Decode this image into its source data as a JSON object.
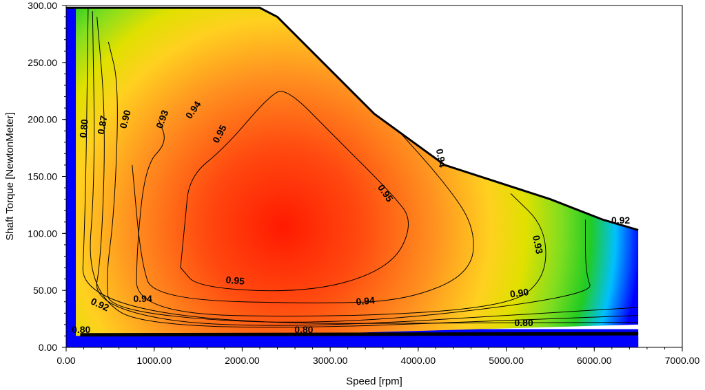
{
  "chart_data": {
    "type": "heatmap",
    "subtype": "efficiency-contour-map",
    "xlabel": "Speed [rpm]",
    "ylabel": "Shaft Torque [NewtonMeter]",
    "xlim": [
      0,
      7000
    ],
    "ylim": [
      0,
      300
    ],
    "x_ticks": [
      "0.00",
      "1000.00",
      "2000.00",
      "3000.00",
      "4000.00",
      "5000.00",
      "6000.00",
      "7000.00"
    ],
    "y_ticks": [
      "0.00",
      "50.00",
      "100.00",
      "150.00",
      "200.00",
      "250.00",
      "300.00"
    ],
    "grid": false,
    "colors": {
      "below_range": "#0000ff",
      "low": "#00c0ff",
      "mid_low": "#22cc22",
      "mid": "#e0e000",
      "mid_high": "#ff9020",
      "high": "#ff1a00"
    },
    "envelope": [
      [
        0,
        298
      ],
      [
        2200,
        298
      ],
      [
        2400,
        290
      ],
      [
        3500,
        205
      ],
      [
        4300,
        160
      ],
      [
        5500,
        130
      ],
      [
        6100,
        112
      ],
      [
        6500,
        103
      ],
      [
        6500,
        20
      ],
      [
        2000,
        10
      ],
      [
        0,
        10
      ]
    ],
    "peak": {
      "speed": 2500,
      "torque": 120,
      "efficiency": 0.96
    },
    "contours": [
      {
        "level": 0.95,
        "points": [
          [
            1300,
            70
          ],
          [
            1500,
            52
          ],
          [
            2800,
            48
          ],
          [
            3700,
            70
          ],
          [
            3950,
            110
          ],
          [
            3700,
            135
          ],
          [
            3050,
            185
          ],
          [
            2500,
            228
          ],
          [
            2300,
            220
          ],
          [
            1800,
            175
          ],
          [
            1400,
            150
          ],
          [
            1350,
            110
          ]
        ]
      },
      {
        "level": 0.94,
        "points": [
          [
            750,
            160
          ],
          [
            850,
            75
          ],
          [
            1000,
            42
          ],
          [
            3000,
            38
          ],
          [
            3900,
            42
          ],
          [
            4600,
            65
          ],
          [
            4650,
            105
          ],
          [
            4300,
            145
          ],
          [
            3600,
            205
          ],
          [
            3400,
            225
          ]
        ]
      },
      {
        "level": 0.93,
        "points": [
          [
            1050,
            200
          ],
          [
            1150,
            180
          ],
          [
            900,
            160
          ],
          [
            800,
            85
          ],
          [
            800,
            30
          ],
          [
            3000,
            26
          ],
          [
            5000,
            35
          ],
          [
            5450,
            60
          ],
          [
            5450,
            105
          ],
          [
            5050,
            135
          ]
        ]
      },
      {
        "level": 0.92,
        "points": [
          [
            480,
            268
          ],
          [
            600,
            230
          ],
          [
            550,
            120
          ],
          [
            450,
            60
          ],
          [
            500,
            30
          ],
          [
            3000,
            18
          ],
          [
            6000,
            45
          ],
          [
            5900,
            65
          ],
          [
            5900,
            112
          ]
        ]
      },
      {
        "level": 0.9,
        "points": [
          [
            350,
            290
          ],
          [
            450,
            200
          ],
          [
            400,
            80
          ],
          [
            300,
            35
          ],
          [
            2000,
            14
          ],
          [
            6500,
            35
          ]
        ]
      },
      {
        "level": 0.87,
        "points": [
          [
            300,
            295
          ],
          [
            330,
            150
          ],
          [
            230,
            50
          ],
          [
            1000,
            12
          ],
          [
            6500,
            28
          ]
        ]
      },
      {
        "level": 0.8,
        "points": [
          [
            250,
            298
          ],
          [
            220,
            120
          ],
          [
            160,
            20
          ],
          [
            6500,
            22
          ]
        ]
      }
    ],
    "contour_labels": [
      {
        "text": "0.95",
        "x": 1750,
        "y": 187,
        "angle": -62
      },
      {
        "text": "0.95",
        "x": 3620,
        "y": 135,
        "angle": 55
      },
      {
        "text": "0.95",
        "x": 1920,
        "y": 58,
        "angle": 5
      },
      {
        "text": "0.94",
        "x": 1450,
        "y": 208,
        "angle": -55
      },
      {
        "text": "0.94",
        "x": 4250,
        "y": 166,
        "angle": 80
      },
      {
        "text": "0.94",
        "x": 870,
        "y": 42,
        "angle": 0
      },
      {
        "text": "0.94",
        "x": 3400,
        "y": 40,
        "angle": -5
      },
      {
        "text": "0.93",
        "x": 1100,
        "y": 200,
        "angle": -70
      },
      {
        "text": "0.93",
        "x": 5350,
        "y": 90,
        "angle": 78
      },
      {
        "text": "0.92",
        "x": 380,
        "y": 37,
        "angle": 25
      },
      {
        "text": "0.92",
        "x": 6300,
        "y": 111,
        "angle": 0
      },
      {
        "text": "0.90",
        "x": 680,
        "y": 200,
        "angle": -75
      },
      {
        "text": "0.90",
        "x": 5150,
        "y": 47,
        "angle": -8
      },
      {
        "text": "0.87",
        "x": 420,
        "y": 195,
        "angle": -80
      },
      {
        "text": "0.80",
        "x": 210,
        "y": 192,
        "angle": -85
      },
      {
        "text": "0.80",
        "x": 170,
        "y": 15,
        "angle": 0
      },
      {
        "text": "0.80",
        "x": 2700,
        "y": 15,
        "angle": 0
      },
      {
        "text": "0.80",
        "x": 5200,
        "y": 21,
        "angle": 0
      }
    ]
  }
}
